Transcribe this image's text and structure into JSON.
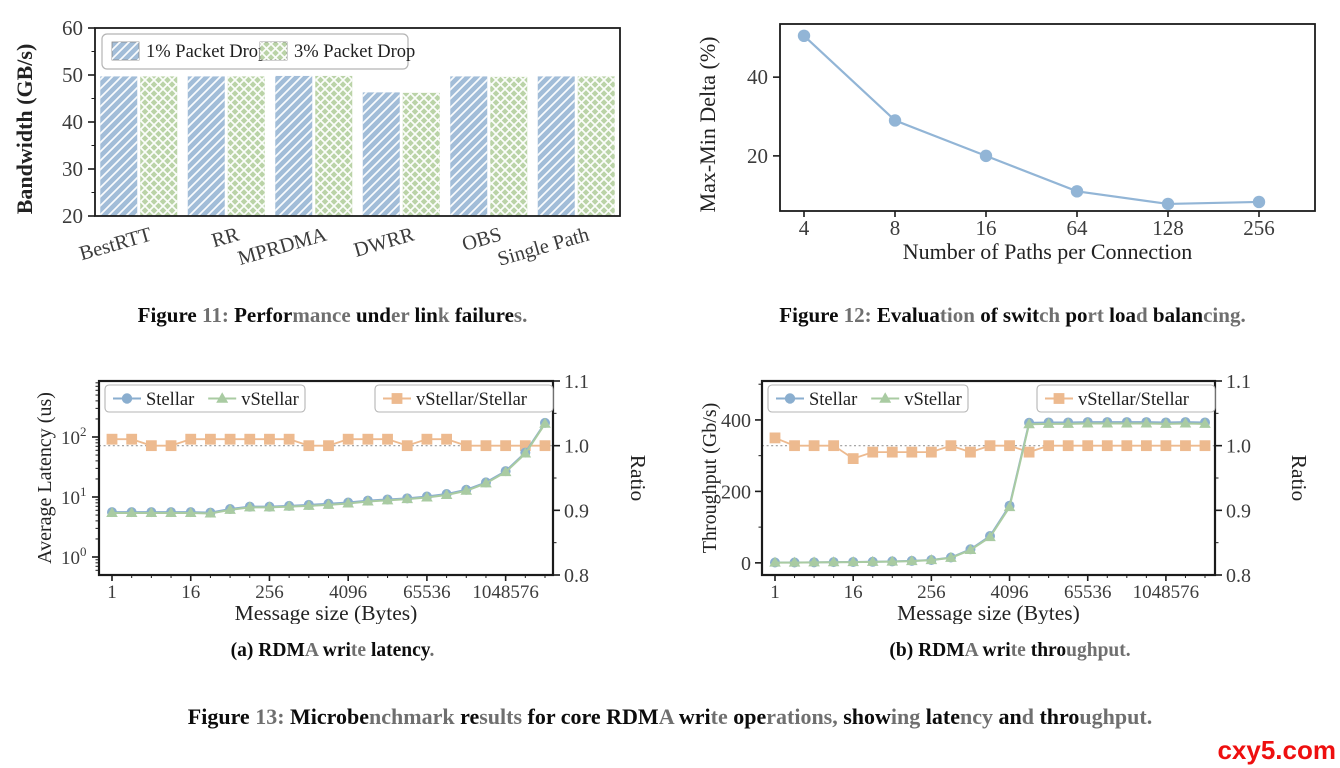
{
  "page": {
    "background": "#ffffff",
    "watermark": {
      "text": "cxy5.com",
      "color": "#ee0f0f"
    }
  },
  "palette": {
    "axis": "#1b1b1b",
    "tick_text": "#3c3c3c",
    "label_text": "#222222",
    "dashed_line": "#999999",
    "legend_border": "#b5b5b5",
    "bar_blue": "#a2bdd8",
    "bar_green": "#bad3a7",
    "line_blue": "#92b5d6",
    "stellar_blue": "#8aaecf",
    "vstellar_green": "#a9cba2",
    "ratio_orange": "#edba8f"
  },
  "captions": {
    "fig11": {
      "segments": [
        {
          "t": "Figure ",
          "c": "b"
        },
        {
          "t": "11: ",
          "c": "g"
        },
        {
          "t": "Perfor",
          "c": "b"
        },
        {
          "t": "mance ",
          "c": "g"
        },
        {
          "t": "und",
          "c": "b"
        },
        {
          "t": "er ",
          "c": "g"
        },
        {
          "t": "lin",
          "c": "b"
        },
        {
          "t": "k ",
          "c": "g"
        },
        {
          "t": "failure",
          "c": "b"
        },
        {
          "t": "s.",
          "c": "g"
        }
      ]
    },
    "fig12": {
      "segments": [
        {
          "t": "Figure ",
          "c": "b"
        },
        {
          "t": "12: ",
          "c": "g"
        },
        {
          "t": "Evalua",
          "c": "b"
        },
        {
          "t": "tion ",
          "c": "g"
        },
        {
          "t": "of swit",
          "c": "b"
        },
        {
          "t": "ch ",
          "c": "g"
        },
        {
          "t": "po",
          "c": "b"
        },
        {
          "t": "rt ",
          "c": "g"
        },
        {
          "t": "loa",
          "c": "b"
        },
        {
          "t": "d ",
          "c": "g"
        },
        {
          "t": "balan",
          "c": "b"
        },
        {
          "t": "cing.",
          "c": "g"
        }
      ]
    },
    "sub_a": {
      "segments": [
        {
          "t": "(a) RDM",
          "c": "b"
        },
        {
          "t": "A ",
          "c": "g"
        },
        {
          "t": "wri",
          "c": "b"
        },
        {
          "t": "te ",
          "c": "g"
        },
        {
          "t": "latency",
          "c": "b"
        },
        {
          "t": ".",
          "c": "g"
        }
      ]
    },
    "sub_b": {
      "segments": [
        {
          "t": "(b) RDM",
          "c": "b"
        },
        {
          "t": "A ",
          "c": "g"
        },
        {
          "t": "wri",
          "c": "b"
        },
        {
          "t": "te ",
          "c": "g"
        },
        {
          "t": "thro",
          "c": "b"
        },
        {
          "t": "ughput.",
          "c": "g"
        }
      ]
    },
    "fig13": {
      "segments": [
        {
          "t": "Figure ",
          "c": "b"
        },
        {
          "t": "13: ",
          "c": "g"
        },
        {
          "t": "Microbe",
          "c": "b"
        },
        {
          "t": "nchmark ",
          "c": "g"
        },
        {
          "t": "re",
          "c": "b"
        },
        {
          "t": "sults ",
          "c": "g"
        },
        {
          "t": "for core RDM",
          "c": "b"
        },
        {
          "t": "A ",
          "c": "g"
        },
        {
          "t": "wri",
          "c": "b"
        },
        {
          "t": "te ",
          "c": "g"
        },
        {
          "t": "ope",
          "c": "b"
        },
        {
          "t": "rations, ",
          "c": "g"
        },
        {
          "t": "show",
          "c": "b"
        },
        {
          "t": "ing ",
          "c": "g"
        },
        {
          "t": "late",
          "c": "b"
        },
        {
          "t": "ncy ",
          "c": "g"
        },
        {
          "t": "an",
          "c": "b"
        },
        {
          "t": "d ",
          "c": "g"
        },
        {
          "t": "thro",
          "c": "b"
        },
        {
          "t": "ughput.",
          "c": "g"
        }
      ]
    }
  },
  "chart_data": [
    {
      "id": "fig11-bar",
      "type": "bar",
      "ylabel": "Bandwidth (GB/s)",
      "ylim": [
        20,
        60
      ],
      "yticks": [
        20,
        30,
        40,
        50,
        60
      ],
      "categories": [
        "BestRTT",
        "RR",
        "MPRDMA",
        "DWRR",
        "OBS",
        "Single Path"
      ],
      "legend_position": "upper-left",
      "series": [
        {
          "name": "1% Packet Drop",
          "color": "#a2bdd8",
          "hatch": "diag",
          "values": [
            49.7,
            49.7,
            49.8,
            46.3,
            49.7,
            49.7
          ]
        },
        {
          "name": "3% Packet Drop",
          "color": "#bad3a7",
          "hatch": "cross",
          "values": [
            49.7,
            49.7,
            49.8,
            46.2,
            49.6,
            49.7
          ]
        }
      ]
    },
    {
      "id": "fig12-line",
      "type": "line",
      "xlabel": "Number of Paths per Connection",
      "ylabel": "Max-Min Delta (%)",
      "categories": [
        "4",
        "8",
        "16",
        "64",
        "128",
        "256"
      ],
      "ylim": [
        6,
        53.5
      ],
      "yticks": [
        20,
        40
      ],
      "series": [
        {
          "name": "Max-Min Delta",
          "color": "#92b5d6",
          "marker": "circle",
          "values": [
            50.5,
            29,
            20,
            11,
            7.8,
            8.3
          ]
        }
      ]
    },
    {
      "id": "fig13a-latency",
      "type": "line-dual",
      "xlabel": "Message size (Bytes)",
      "ylabel": "Average Latency (us)",
      "ylabel_right": "Ratio",
      "yscale": "log",
      "ytick_exponents": [
        0,
        1,
        2
      ],
      "ylim_right": [
        0.8,
        1.1
      ],
      "yticks_right": [
        0.8,
        0.9,
        1.0,
        1.1
      ],
      "x": [
        1,
        2,
        4,
        8,
        16,
        32,
        64,
        128,
        256,
        512,
        1024,
        2048,
        4096,
        8192,
        16384,
        32768,
        65536,
        131072,
        262144,
        524288,
        1048576,
        2097152,
        4194304
      ],
      "xticks": [
        1,
        16,
        256,
        4096,
        65536,
        1048576
      ],
      "reference_line_right": 1.0,
      "series": [
        {
          "name": "Stellar",
          "color": "#8aaecf",
          "marker": "circle",
          "values": [
            5.6,
            5.6,
            5.6,
            5.6,
            5.6,
            5.5,
            6.3,
            6.9,
            6.9,
            7.1,
            7.4,
            7.7,
            8.1,
            8.7,
            9.1,
            9.5,
            10.2,
            11.2,
            13.2,
            17.5,
            27,
            55,
            172
          ]
        },
        {
          "name": "vStellar",
          "color": "#a9cba2",
          "marker": "triangle",
          "values": [
            5.4,
            5.4,
            5.4,
            5.4,
            5.4,
            5.3,
            6.1,
            6.7,
            6.7,
            6.9,
            7.1,
            7.4,
            7.8,
            8.4,
            8.8,
            9.2,
            9.8,
            10.8,
            12.7,
            16.9,
            26,
            53,
            166
          ]
        }
      ],
      "ratio_series": {
        "name": "vStellar/Stellar",
        "color": "#edba8f",
        "marker": "square",
        "values": [
          1.01,
          1.01,
          1.0,
          1.0,
          1.01,
          1.01,
          1.01,
          1.01,
          1.01,
          1.01,
          1.0,
          1.0,
          1.01,
          1.01,
          1.01,
          1.0,
          1.01,
          1.01,
          1.0,
          1.0,
          1.0,
          1.0,
          1.0
        ]
      }
    },
    {
      "id": "fig13b-throughput",
      "type": "line-dual",
      "xlabel": "Message size (Bytes)",
      "ylabel": "Throughput (Gb/s)",
      "ylabel_right": "Ratio",
      "yscale": "linear",
      "ylim": [
        -34,
        509
      ],
      "yticks": [
        0,
        200,
        400
      ],
      "ylim_right": [
        0.8,
        1.1
      ],
      "yticks_right": [
        0.8,
        0.9,
        1.0,
        1.1
      ],
      "x": [
        1,
        2,
        4,
        8,
        16,
        32,
        64,
        128,
        256,
        512,
        1024,
        2048,
        4096,
        8192,
        16384,
        32768,
        65536,
        131072,
        262144,
        524288,
        1048576,
        2097152,
        4194304
      ],
      "xticks": [
        1,
        16,
        256,
        4096,
        65536,
        1048576
      ],
      "reference_line_right": 1.0,
      "series": [
        {
          "name": "Stellar",
          "color": "#8aaecf",
          "marker": "circle",
          "values": [
            1,
            1,
            1.5,
            2,
            2.5,
            3,
            4,
            5.5,
            8,
            15,
            38,
            75,
            160,
            392,
            393,
            393,
            394,
            394,
            394,
            394,
            393,
            394,
            393
          ]
        },
        {
          "name": "vStellar",
          "color": "#a9cba2",
          "marker": "triangle",
          "values": [
            0.8,
            0.8,
            1.2,
            1.7,
            2.2,
            2.7,
            3.6,
            5,
            7.5,
            14,
            36,
            72,
            156,
            388,
            389,
            389,
            390,
            390,
            390,
            390,
            389,
            390,
            389
          ]
        }
      ],
      "ratio_series": {
        "name": "vStellar/Stellar",
        "color": "#edba8f",
        "marker": "square",
        "values": [
          1.012,
          1.0,
          1.0,
          1.0,
          0.98,
          0.99,
          0.99,
          0.99,
          0.99,
          1.0,
          0.99,
          1.0,
          1.0,
          0.99,
          1.0,
          1.0,
          1.0,
          1.0,
          1.0,
          1.0,
          1.0,
          1.0,
          1.0
        ]
      }
    }
  ]
}
